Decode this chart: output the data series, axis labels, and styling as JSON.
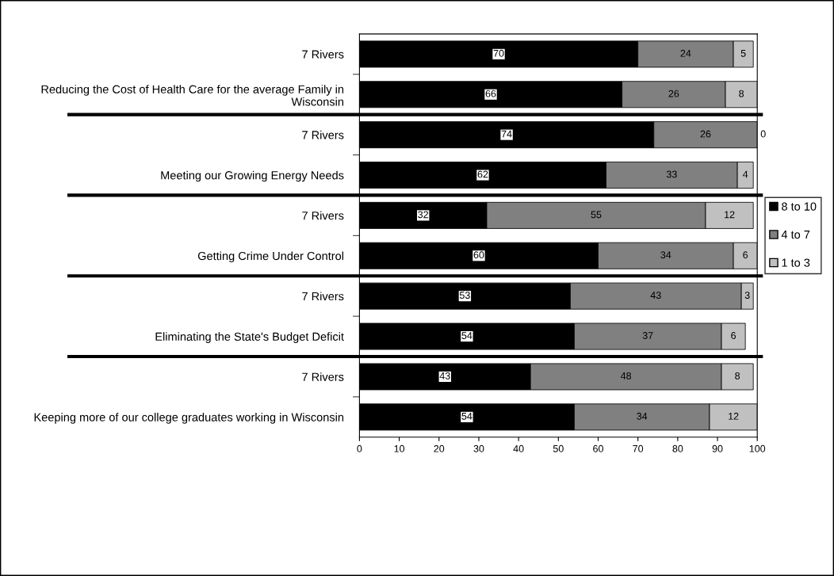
{
  "chart_data": {
    "type": "bar",
    "orientation": "horizontal",
    "stacked": true,
    "categories": [
      "7 Rivers",
      "Reducing the Cost of Health Care for the average Family in Wisconsin",
      "7 Rivers",
      "Meeting our Growing Energy Needs",
      "7 Rivers",
      "Getting Crime Under Control",
      "7 Rivers",
      "Eliminating the State's Budget Deficit",
      "7 Rivers",
      "Keeping more of our college graduates working in Wisconsin"
    ],
    "series": [
      {
        "name": "8 to 10",
        "color": "#000000",
        "values": [
          70,
          66,
          74,
          62,
          32,
          60,
          53,
          54,
          43,
          54
        ]
      },
      {
        "name": "4 to 7",
        "color": "#808080",
        "values": [
          24,
          26,
          26,
          33,
          55,
          34,
          43,
          37,
          48,
          34
        ]
      },
      {
        "name": "1 to 3",
        "color": "#c0c0c0",
        "values": [
          5,
          8,
          0,
          4,
          12,
          6,
          3,
          6,
          8,
          12
        ]
      }
    ],
    "xlim": [
      0,
      100
    ],
    "xticks": [
      0,
      10,
      20,
      30,
      40,
      50,
      60,
      70,
      80,
      90,
      100
    ],
    "data_labels": true,
    "legend": "right",
    "grid": false
  }
}
